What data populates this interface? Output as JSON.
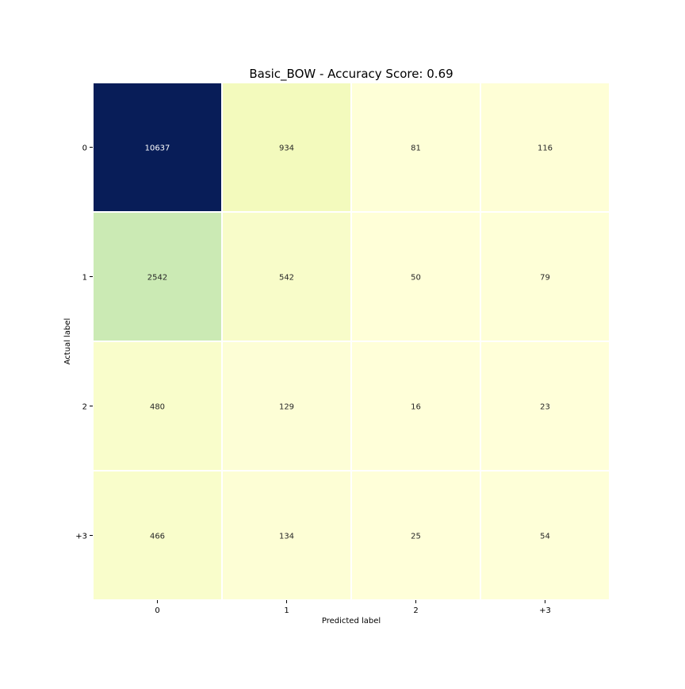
{
  "chart_data": {
    "type": "heatmap",
    "title": "Basic_BOW - Accuracy Score: 0.69",
    "xlabel": "Predicted label",
    "ylabel": "Actual label",
    "x_categories": [
      "0",
      "1",
      "2",
      "+3"
    ],
    "y_categories": [
      "0",
      "1",
      "2",
      "+3"
    ],
    "values": [
      [
        10637,
        934,
        81,
        116
      ],
      [
        2542,
        542,
        50,
        79
      ],
      [
        480,
        129,
        16,
        23
      ],
      [
        466,
        134,
        25,
        54
      ]
    ],
    "colormap": "YlGnBu",
    "colorbar": false,
    "grid_line_color": "#ffffff"
  }
}
